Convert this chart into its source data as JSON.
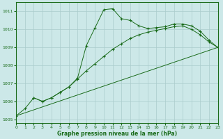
{
  "bg_color": "#cce8e8",
  "grid_color": "#aacccc",
  "line_color": "#1a6b1a",
  "xlabel": "Graphe pression niveau de la mer (hPa)",
  "xlim": [
    0,
    23
  ],
  "ylim": [
    1004.8,
    1011.5
  ],
  "yticks": [
    1005,
    1006,
    1007,
    1008,
    1009,
    1010,
    1011
  ],
  "xticks": [
    0,
    1,
    2,
    3,
    4,
    5,
    6,
    7,
    8,
    9,
    10,
    11,
    12,
    13,
    14,
    15,
    16,
    17,
    18,
    19,
    20,
    21,
    22,
    23
  ],
  "curve1": {
    "x": [
      0,
      1,
      2,
      3,
      4,
      5,
      6,
      7,
      8,
      9,
      10,
      11,
      12,
      13,
      14,
      15,
      16,
      17,
      18,
      19,
      20,
      21,
      22,
      23
    ],
    "y": [
      1005.2,
      1005.6,
      1006.2,
      1006.0,
      1006.2,
      1006.5,
      1006.8,
      1007.3,
      1009.1,
      1010.1,
      1011.1,
      1011.15,
      1010.6,
      1010.5,
      1010.2,
      1010.05,
      1010.1,
      1010.15,
      1010.3,
      1010.3,
      1010.2,
      1009.9,
      1009.4,
      1009.0
    ]
  },
  "curve2": {
    "x": [
      2,
      3,
      4,
      5,
      6,
      7,
      8,
      9,
      10,
      11,
      12,
      13,
      14,
      15,
      16,
      17,
      18,
      19,
      20,
      21,
      22,
      23
    ],
    "y": [
      1006.2,
      1006.0,
      1006.2,
      1006.5,
      1006.8,
      1007.25,
      1007.7,
      1008.1,
      1008.5,
      1008.9,
      1009.2,
      1009.5,
      1009.7,
      1009.85,
      1009.95,
      1010.05,
      1010.15,
      1010.2,
      1010.0,
      1009.7,
      1009.3,
      1009.0
    ]
  },
  "curve3": {
    "x": [
      0,
      23
    ],
    "y": [
      1005.2,
      1009.0
    ]
  }
}
